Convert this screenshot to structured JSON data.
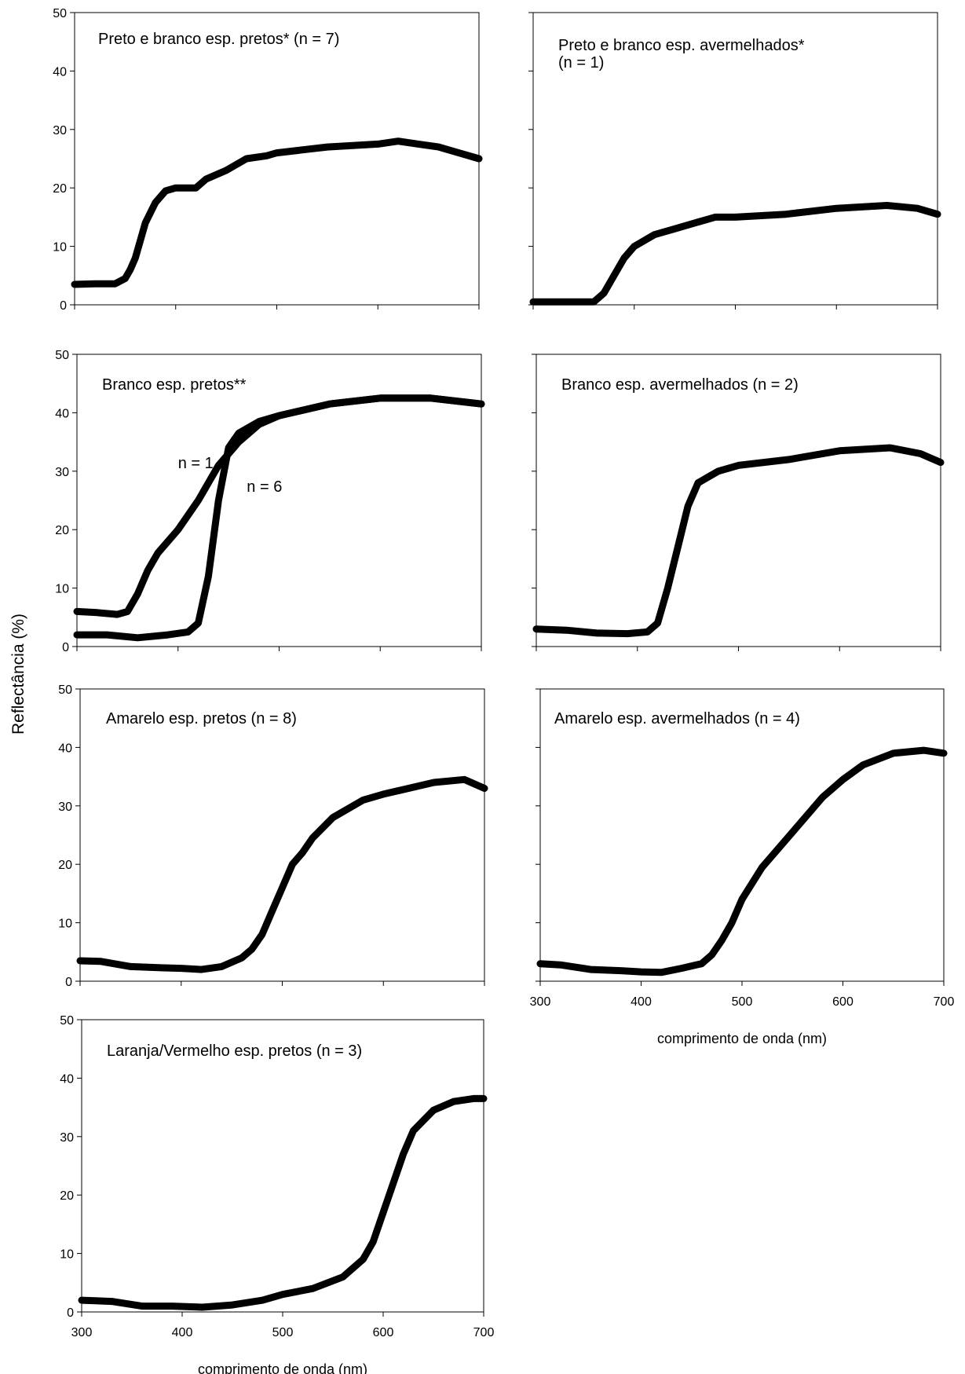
{
  "figure": {
    "ylabel": "Reflectância (%)"
  },
  "chart_data": [
    {
      "type": "line",
      "title": "Preto e branco esp. pretos* (n = 7)",
      "xlabel": "",
      "ylabel": "",
      "xlim": [
        300,
        700
      ],
      "ylim": [
        0,
        50
      ],
      "yticks": [
        "0",
        "10",
        "20",
        "30",
        "40",
        "50"
      ],
      "xticks": [],
      "series": [
        {
          "x": [
            300,
            320,
            340,
            350,
            355,
            360,
            365,
            370,
            380,
            390,
            400,
            420,
            430,
            450,
            470,
            490,
            500,
            550,
            600,
            620,
            640,
            660,
            680,
            700
          ],
          "y": [
            3.5,
            3.6,
            3.6,
            4.5,
            6,
            8,
            11,
            14,
            17.5,
            19.5,
            20,
            20,
            21.5,
            23,
            25,
            25.5,
            26,
            27,
            27.5,
            28,
            27.5,
            27,
            26,
            25
          ]
        }
      ]
    },
    {
      "type": "line",
      "title": "Preto e branco esp. avermelhados*\n(n = 1)",
      "xlabel": "",
      "ylabel": "",
      "xlim": [
        300,
        700
      ],
      "ylim": [
        0,
        50
      ],
      "yticks": [],
      "xticks": [],
      "series": [
        {
          "x": [
            300,
            330,
            360,
            370,
            380,
            390,
            400,
            420,
            440,
            460,
            480,
            500,
            550,
            600,
            650,
            680,
            700
          ],
          "y": [
            0.5,
            0.5,
            0.5,
            2,
            5,
            8,
            10,
            12,
            13,
            14,
            15,
            15,
            15.5,
            16.5,
            17,
            16.5,
            15.5
          ]
        }
      ]
    },
    {
      "type": "line",
      "title": "Branco esp. pretos**",
      "xlabel": "",
      "ylabel": "",
      "xlim": [
        300,
        700
      ],
      "ylim": [
        0,
        50
      ],
      "yticks": [
        "0",
        "10",
        "20",
        "30",
        "40",
        "50"
      ],
      "xticks": [],
      "annotations": [
        "n = 1",
        "n = 6"
      ],
      "series": [
        {
          "name": "n = 1",
          "x": [
            300,
            320,
            340,
            350,
            360,
            370,
            380,
            400,
            420,
            440,
            460,
            480,
            500,
            550,
            600,
            650,
            700
          ],
          "y": [
            6,
            5.8,
            5.5,
            6,
            9,
            13,
            16,
            20,
            25,
            31,
            35,
            38,
            39.5,
            41.5,
            42.5,
            42.5,
            41.5
          ]
        },
        {
          "name": "n = 6",
          "x": [
            300,
            330,
            360,
            390,
            410,
            420,
            430,
            440,
            450,
            460,
            470,
            480,
            500,
            550,
            600,
            650,
            700
          ],
          "y": [
            2,
            2,
            1.5,
            2,
            2.5,
            4,
            12,
            25,
            34,
            36.5,
            37.5,
            38.5,
            39.5,
            41.5,
            42.5,
            42.5,
            41.5
          ]
        }
      ]
    },
    {
      "type": "line",
      "title": "Branco esp. avermelhados (n = 2)",
      "xlabel": "",
      "ylabel": "",
      "xlim": [
        300,
        700
      ],
      "ylim": [
        0,
        50
      ],
      "yticks": [],
      "xticks": [],
      "series": [
        {
          "x": [
            300,
            330,
            360,
            390,
            410,
            420,
            430,
            440,
            450,
            460,
            470,
            480,
            500,
            550,
            600,
            650,
            680,
            700
          ],
          "y": [
            3,
            2.8,
            2.3,
            2.2,
            2.5,
            4,
            10,
            17,
            24,
            28,
            29,
            30,
            31,
            32,
            33.5,
            34,
            33,
            31.5
          ]
        }
      ]
    },
    {
      "type": "line",
      "title": "Amarelo esp. pretos (n = 8)",
      "xlabel": "",
      "ylabel": "",
      "xlim": [
        300,
        700
      ],
      "ylim": [
        0,
        50
      ],
      "yticks": [
        "0",
        "10",
        "20",
        "30",
        "40",
        "50"
      ],
      "xticks": [],
      "series": [
        {
          "x": [
            300,
            320,
            350,
            380,
            400,
            420,
            440,
            460,
            470,
            480,
            490,
            500,
            510,
            520,
            530,
            550,
            580,
            600,
            650,
            680,
            700
          ],
          "y": [
            3.5,
            3.4,
            2.5,
            2.3,
            2.2,
            2,
            2.5,
            4,
            5.5,
            8,
            12,
            16,
            20,
            22,
            24.5,
            28,
            31,
            32,
            34,
            34.5,
            33
          ]
        }
      ]
    },
    {
      "type": "line",
      "title": "Amarelo esp. avermelhados (n = 4)",
      "xlabel": "comprimento de onda (nm)",
      "ylabel": "",
      "xlim": [
        300,
        700
      ],
      "ylim": [
        0,
        50
      ],
      "yticks": [],
      "xticks": [
        "300",
        "400",
        "500",
        "600",
        "700"
      ],
      "series": [
        {
          "x": [
            300,
            320,
            350,
            380,
            400,
            420,
            440,
            460,
            470,
            480,
            490,
            500,
            520,
            550,
            580,
            600,
            620,
            650,
            680,
            700
          ],
          "y": [
            3,
            2.8,
            2,
            1.8,
            1.6,
            1.5,
            2.2,
            3,
            4.5,
            7,
            10,
            14,
            19.5,
            25.5,
            31.5,
            34.5,
            37,
            39,
            39.5,
            39
          ]
        }
      ]
    },
    {
      "type": "line",
      "title": "Laranja/Vermelho esp. pretos (n = 3)",
      "xlabel": "comprimento de onda (nm)",
      "ylabel": "",
      "xlim": [
        300,
        700
      ],
      "ylim": [
        0,
        50
      ],
      "yticks": [
        "0",
        "10",
        "20",
        "30",
        "40",
        "50"
      ],
      "xticks": [
        "300",
        "400",
        "500",
        "600",
        "700"
      ],
      "series": [
        {
          "x": [
            300,
            330,
            360,
            390,
            420,
            450,
            480,
            500,
            530,
            560,
            580,
            590,
            600,
            610,
            620,
            630,
            650,
            670,
            690,
            700
          ],
          "y": [
            2,
            1.8,
            1,
            1,
            0.8,
            1.2,
            2,
            3,
            4,
            6,
            9,
            12,
            17,
            22,
            27,
            31,
            34.5,
            36,
            36.5,
            36.5
          ]
        }
      ]
    }
  ]
}
